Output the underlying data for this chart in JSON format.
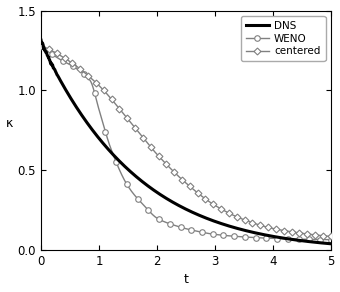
{
  "title": "",
  "xlabel": "t",
  "ylabel": "κ",
  "xlim": [
    0,
    5
  ],
  "ylim": [
    0,
    1.5
  ],
  "xticks": [
    0,
    1,
    2,
    3,
    4,
    5
  ],
  "yticks": [
    0,
    0.5,
    1.0,
    1.5
  ],
  "dns_color": "#000000",
  "weno_color": "#808080",
  "centered_color": "#808080",
  "dns_linewidth": 2.2,
  "weno_linewidth": 1.0,
  "centered_linewidth": 1.0,
  "legend_labels": [
    "DNS",
    "WENO",
    "centered"
  ],
  "background_color": "#ffffff",
  "figsize": [
    3.4,
    2.92
  ],
  "dpi": 100
}
